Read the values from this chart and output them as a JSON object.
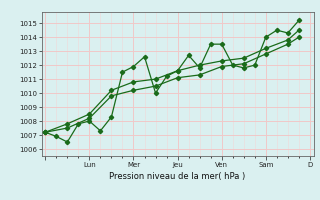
{
  "title": "",
  "xlabel": "Pression niveau de la mer( hPa )",
  "ylabel": "",
  "ylim": [
    1005.5,
    1015.8
  ],
  "yticks": [
    1006,
    1007,
    1008,
    1009,
    1010,
    1011,
    1012,
    1013,
    1014,
    1015
  ],
  "day_labels": [
    "",
    "Lun",
    "Mer",
    "Jeu",
    "Ven",
    "Sam",
    "D"
  ],
  "day_positions": [
    0,
    24,
    48,
    72,
    96,
    120,
    144
  ],
  "background_color": "#daf0f0",
  "grid_color_major": "#f0c8c8",
  "grid_color_minor": "#f0d8d8",
  "line_color": "#1a6b1a",
  "line1": [
    [
      0,
      1007.2
    ],
    [
      6,
      1006.9
    ],
    [
      12,
      1006.5
    ],
    [
      18,
      1007.8
    ],
    [
      24,
      1008.0
    ],
    [
      30,
      1007.3
    ],
    [
      36,
      1008.3
    ],
    [
      42,
      1011.5
    ],
    [
      48,
      1011.9
    ],
    [
      54,
      1012.6
    ],
    [
      60,
      1010.0
    ],
    [
      66,
      1011.2
    ],
    [
      72,
      1011.6
    ],
    [
      78,
      1012.7
    ],
    [
      84,
      1011.8
    ],
    [
      90,
      1013.5
    ],
    [
      96,
      1013.5
    ],
    [
      102,
      1012.0
    ],
    [
      108,
      1011.8
    ],
    [
      114,
      1012.0
    ],
    [
      120,
      1014.0
    ],
    [
      126,
      1014.5
    ],
    [
      132,
      1014.3
    ],
    [
      138,
      1015.2
    ]
  ],
  "line2": [
    [
      0,
      1007.2
    ],
    [
      12,
      1007.5
    ],
    [
      24,
      1008.2
    ],
    [
      36,
      1009.8
    ],
    [
      48,
      1010.2
    ],
    [
      60,
      1010.5
    ],
    [
      72,
      1011.1
    ],
    [
      84,
      1011.3
    ],
    [
      96,
      1011.9
    ],
    [
      108,
      1012.1
    ],
    [
      120,
      1012.8
    ],
    [
      132,
      1013.5
    ],
    [
      138,
      1014.0
    ]
  ],
  "line3": [
    [
      0,
      1007.2
    ],
    [
      12,
      1007.8
    ],
    [
      24,
      1008.5
    ],
    [
      36,
      1010.2
    ],
    [
      48,
      1010.8
    ],
    [
      60,
      1011.0
    ],
    [
      72,
      1011.6
    ],
    [
      84,
      1012.0
    ],
    [
      96,
      1012.3
    ],
    [
      108,
      1012.5
    ],
    [
      120,
      1013.2
    ],
    [
      132,
      1013.8
    ],
    [
      138,
      1014.5
    ]
  ]
}
